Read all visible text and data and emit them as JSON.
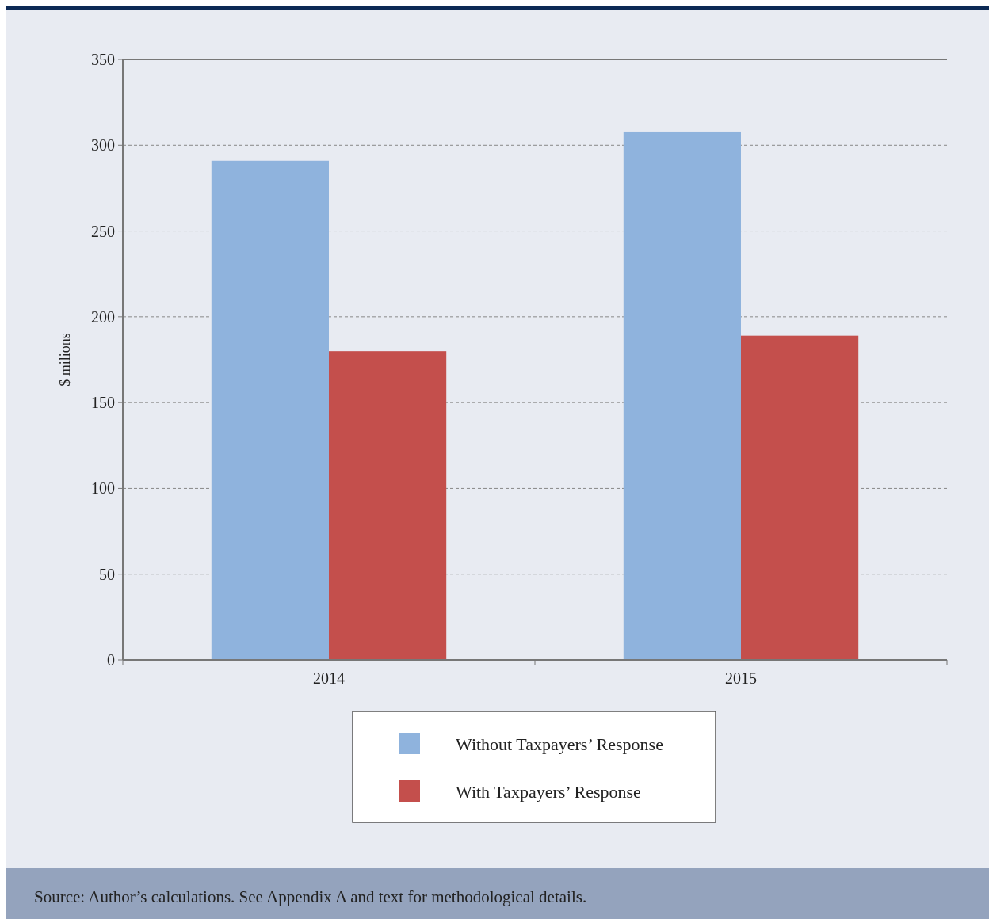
{
  "chart_data": {
    "type": "bar",
    "ylabel": "$ milions",
    "categories": [
      "2014",
      "2015"
    ],
    "series": [
      {
        "name": "Without Taxpayers’ Response",
        "color": "#8fb3dd",
        "values": [
          291,
          308
        ]
      },
      {
        "name": "With Taxpayers’ Response",
        "color": "#c44f4c",
        "values": [
          180,
          189
        ]
      }
    ],
    "ylim": [
      0,
      350
    ],
    "yticks": [
      0,
      50,
      100,
      150,
      200,
      250,
      300,
      350
    ],
    "grid": "y",
    "line_style": "dashed",
    "legend": "bottom",
    "annotations": [
      "Source: Author’s calculations. See Appendix A and text for methodological details."
    ]
  }
}
